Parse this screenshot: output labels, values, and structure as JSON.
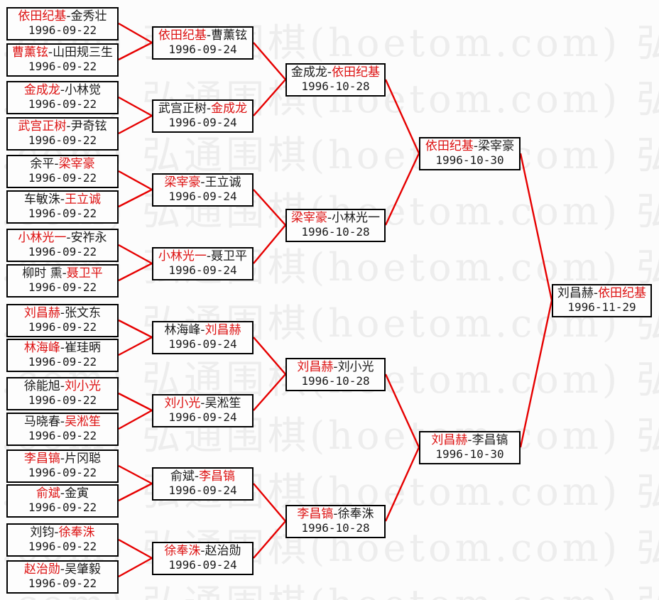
{
  "watermark": {
    "text": "弘通围棋(hoetom.com)",
    "color": "#ededed"
  },
  "colors": {
    "line": "#e60000",
    "winner_text": "#dd1111",
    "normal_text": "#1a1a1a",
    "box_border": "#000000",
    "box_background": "#fdfdfd",
    "page_background": "#fcfcfc"
  },
  "bracket": {
    "rounds": [
      {
        "matches": [
          {
            "players": [
              "依田纪基",
              "金秀壮"
            ],
            "winner": 0,
            "date": "1996-09-22"
          },
          {
            "players": [
              "曹薰铉",
              "山田规三生"
            ],
            "winner": 0,
            "date": "1996-09-22"
          },
          {
            "players": [
              "金成龙",
              "小林觉"
            ],
            "winner": 0,
            "date": "1996-09-22"
          },
          {
            "players": [
              "武宫正树",
              "尹奇铉"
            ],
            "winner": 0,
            "date": "1996-09-22"
          },
          {
            "players": [
              "余平",
              "梁宰豪"
            ],
            "winner": 1,
            "date": "1996-09-22"
          },
          {
            "players": [
              "车敏洙",
              "王立诚"
            ],
            "winner": 1,
            "date": "1996-09-22"
          },
          {
            "players": [
              "小林光一",
              "安祚永"
            ],
            "winner": 0,
            "date": "1996-09-22"
          },
          {
            "players": [
              "柳时 熏",
              "聂卫平"
            ],
            "winner": 1,
            "date": "1996-09-22"
          },
          {
            "players": [
              "刘昌赫",
              "张文东"
            ],
            "winner": 0,
            "date": "1996-09-22"
          },
          {
            "players": [
              "林海峰",
              "崔珪昞"
            ],
            "winner": 0,
            "date": "1996-09-22"
          },
          {
            "players": [
              "徐能旭",
              "刘小光"
            ],
            "winner": 1,
            "date": "1996-09-22"
          },
          {
            "players": [
              "马晓春",
              "吴淞笙"
            ],
            "winner": 1,
            "date": "1996-09-22"
          },
          {
            "players": [
              "李昌镐",
              "片冈聪"
            ],
            "winner": 0,
            "date": "1996-09-22"
          },
          {
            "players": [
              "俞斌",
              "金寅"
            ],
            "winner": 0,
            "date": "1996-09-22"
          },
          {
            "players": [
              "刘钧",
              "徐奉洙"
            ],
            "winner": 1,
            "date": "1996-09-22"
          },
          {
            "players": [
              "赵治勋",
              "吴肇毅"
            ],
            "winner": 0,
            "date": "1996-09-22"
          }
        ]
      },
      {
        "matches": [
          {
            "players": [
              "依田纪基",
              "曹薰铉"
            ],
            "winner": 0,
            "date": "1996-09-24"
          },
          {
            "players": [
              "武宫正树",
              "金成龙"
            ],
            "winner": 1,
            "date": "1996-09-24"
          },
          {
            "players": [
              "梁宰豪",
              "王立诚"
            ],
            "winner": 0,
            "date": "1996-09-24"
          },
          {
            "players": [
              "小林光一",
              "聂卫平"
            ],
            "winner": 0,
            "date": "1996-09-24"
          },
          {
            "players": [
              "林海峰",
              "刘昌赫"
            ],
            "winner": 1,
            "date": "1996-09-24"
          },
          {
            "players": [
              "刘小光",
              "吴淞笙"
            ],
            "winner": 0,
            "date": "1996-09-24"
          },
          {
            "players": [
              "俞斌",
              "李昌镐"
            ],
            "winner": 1,
            "date": "1996-09-24"
          },
          {
            "players": [
              "徐奉洙",
              "赵治勋"
            ],
            "winner": 0,
            "date": "1996-09-24"
          }
        ]
      },
      {
        "matches": [
          {
            "players": [
              "金成龙",
              "依田纪基"
            ],
            "winner": 1,
            "date": "1996-10-28"
          },
          {
            "players": [
              "梁宰豪",
              "小林光一"
            ],
            "winner": 0,
            "date": "1996-10-28"
          },
          {
            "players": [
              "刘昌赫",
              "刘小光"
            ],
            "winner": 0,
            "date": "1996-10-28"
          },
          {
            "players": [
              "李昌镐",
              "徐奉洙"
            ],
            "winner": 0,
            "date": "1996-10-28"
          }
        ]
      },
      {
        "matches": [
          {
            "players": [
              "依田纪基",
              "梁宰豪"
            ],
            "winner": 0,
            "date": "1996-10-30"
          },
          {
            "players": [
              "刘昌赫",
              "李昌镐"
            ],
            "winner": 0,
            "date": "1996-10-30"
          }
        ]
      },
      {
        "matches": [
          {
            "players": [
              "刘昌赫",
              "依田纪基"
            ],
            "winner": 1,
            "date": "1996-11-29"
          }
        ]
      }
    ]
  }
}
